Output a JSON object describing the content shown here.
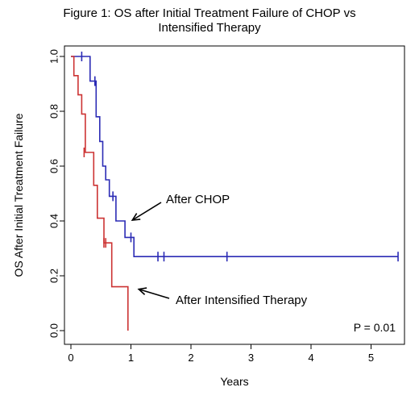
{
  "title_line1": "Figure 1: OS after Initial Treatment Failure of CHOP vs",
  "title_line2": "Intensified Therapy",
  "chart_data": {
    "type": "line",
    "step": true,
    "title": "Figure 1: OS after Initial Treatment Failure of CHOP vs Intensified Therapy",
    "xlabel": "Years",
    "ylabel": "OS After Initial Treatment Failure",
    "xlim": [
      0,
      5.6
    ],
    "ylim": [
      0,
      1.0
    ],
    "x_ticks": [
      0,
      1,
      2,
      3,
      4,
      5
    ],
    "y_ticks": [
      "0.0",
      "0.2",
      "0.4",
      "0.6",
      "0.8",
      "1.0"
    ],
    "grid": false,
    "legend": "none",
    "series": [
      {
        "name": "After CHOP",
        "color": "#2b2bb5",
        "x": [
          0,
          0.32,
          0.32,
          0.42,
          0.42,
          0.48,
          0.48,
          0.53,
          0.53,
          0.58,
          0.58,
          0.64,
          0.64,
          0.75,
          0.75,
          0.9,
          0.9,
          1.05,
          1.05,
          5.45
        ],
        "y": [
          1.0,
          1.0,
          0.91,
          0.91,
          0.78,
          0.78,
          0.69,
          0.69,
          0.6,
          0.6,
          0.55,
          0.55,
          0.49,
          0.49,
          0.4,
          0.4,
          0.34,
          0.34,
          0.27,
          0.27
        ],
        "censored_x": [
          0.18,
          0.4,
          0.7,
          1.0,
          1.45,
          1.55,
          2.6,
          5.45
        ],
        "censored_y": [
          1.0,
          0.91,
          0.49,
          0.34,
          0.27,
          0.27,
          0.27,
          0.27
        ]
      },
      {
        "name": "After Intensified Therapy",
        "color": "#cc3333",
        "x": [
          0,
          0.05,
          0.05,
          0.12,
          0.12,
          0.18,
          0.18,
          0.24,
          0.24,
          0.38,
          0.38,
          0.44,
          0.44,
          0.55,
          0.55,
          0.68,
          0.68,
          0.95,
          0.95
        ],
        "y": [
          1.0,
          1.0,
          0.93,
          0.93,
          0.86,
          0.86,
          0.79,
          0.79,
          0.65,
          0.65,
          0.53,
          0.53,
          0.41,
          0.41,
          0.32,
          0.32,
          0.16,
          0.16,
          0.0
        ],
        "censored_x": [
          0.22,
          0.55,
          0.58
        ],
        "censored_y": [
          0.65,
          0.32,
          0.32
        ]
      }
    ],
    "annotations": [
      {
        "text": "After CHOP",
        "arrow_to": [
          0.97,
          0.4
        ]
      },
      {
        "text": "After Intensified Therapy",
        "arrow_to": [
          1.05,
          0.16
        ]
      },
      {
        "text": "P = 0.01"
      }
    ]
  }
}
